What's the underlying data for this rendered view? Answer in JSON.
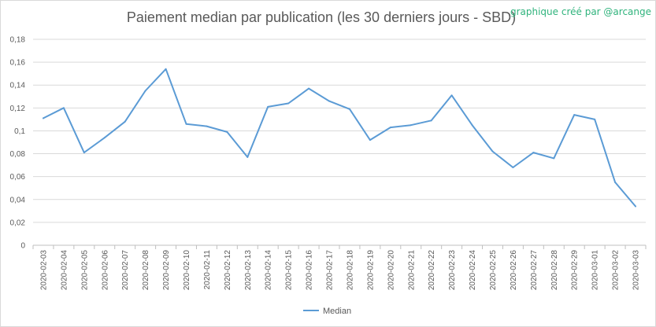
{
  "title": "Paiement median par publication (les 30 derniers jours - SBD)",
  "credit": "graphique créé par @arcange",
  "chart_data": {
    "type": "line",
    "title": "Paiement median par publication (les 30 derniers jours - SBD)",
    "x": [
      "2020-02-03",
      "2020-02-04",
      "2020-02-05",
      "2020-02-06",
      "2020-02-07",
      "2020-02-08",
      "2020-02-09",
      "2020-02-10",
      "2020-02-11",
      "2020-02-12",
      "2020-02-13",
      "2020-02-14",
      "2020-02-15",
      "2020-02-16",
      "2020-02-17",
      "2020-02-18",
      "2020-02-19",
      "2020-02-20",
      "2020-02-21",
      "2020-02-22",
      "2020-02-23",
      "2020-02-24",
      "2020-02-25",
      "2020-02-26",
      "2020-02-27",
      "2020-02-28",
      "2020-02-29",
      "2020-03-01",
      "2020-03-02",
      "2020-03-03"
    ],
    "series": [
      {
        "name": "Median",
        "color": "#5b9bd5",
        "values": [
          0.111,
          0.12,
          0.081,
          0.094,
          0.108,
          0.135,
          0.154,
          0.106,
          0.104,
          0.099,
          0.077,
          0.121,
          0.124,
          0.137,
          0.126,
          0.119,
          0.092,
          0.103,
          0.105,
          0.109,
          0.131,
          0.105,
          0.082,
          0.068,
          0.081,
          0.076,
          0.114,
          0.11,
          0.055,
          0.034
        ]
      }
    ],
    "ylim": [
      0,
      0.18
    ],
    "yticks": [
      "0",
      "0,02",
      "0,04",
      "0,06",
      "0,08",
      "0,1",
      "0,12",
      "0,14",
      "0,16",
      "0,18"
    ],
    "grid": true,
    "legend_position": "bottom"
  }
}
